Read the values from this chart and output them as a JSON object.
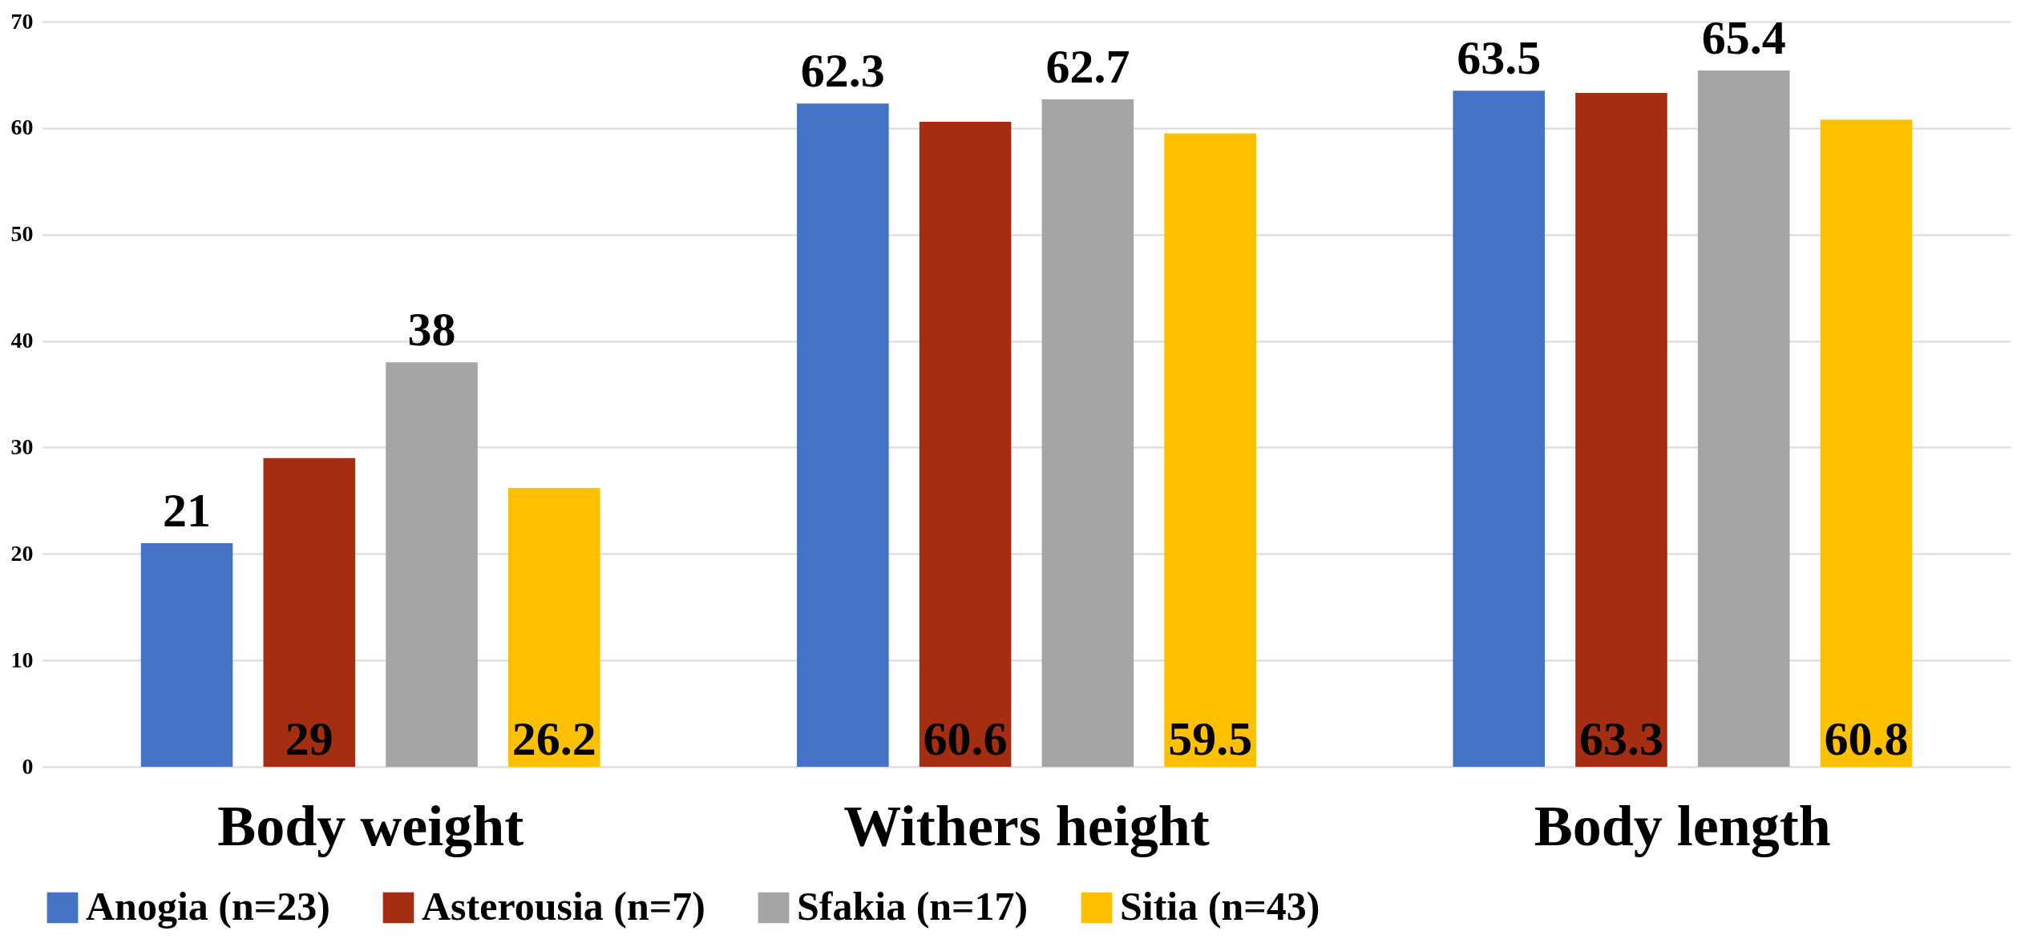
{
  "chart_data": {
    "type": "bar",
    "categories": [
      "Body weight",
      "Withers height",
      "Body length"
    ],
    "series": [
      {
        "name": "Anogia (n=23)",
        "color": "#4472c4",
        "values": [
          21,
          62.3,
          63.5
        ]
      },
      {
        "name": "Asterousia (n=7)",
        "color": "#a52e12",
        "values": [
          29,
          60.6,
          63.3
        ]
      },
      {
        "name": "Sfakia (n=17)",
        "color": "#a5a5a5",
        "values": [
          38,
          62.7,
          65.4
        ]
      },
      {
        "name": "Sitia (n=43)",
        "color": "#ffc000",
        "values": [
          26.2,
          59.5,
          60.8
        ]
      }
    ],
    "ylim": [
      0,
      70
    ],
    "yticks": [
      0,
      10,
      20,
      30,
      40,
      50,
      60,
      70
    ],
    "grid": "y",
    "legend": "bottom",
    "data_labels": true
  }
}
